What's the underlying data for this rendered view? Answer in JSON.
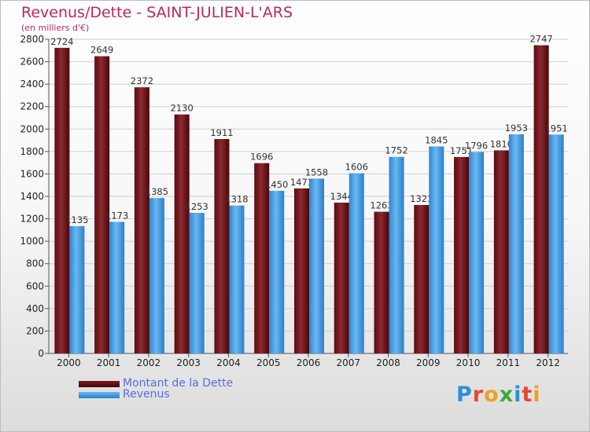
{
  "header": {
    "title": "Revenus/Dette - SAINT-JULIEN-L'ARS",
    "subtitle": "(en milliers d'€)"
  },
  "chart_data": {
    "type": "bar",
    "categories": [
      "2000",
      "2001",
      "2002",
      "2003",
      "2004",
      "2005",
      "2006",
      "2007",
      "2008",
      "2009",
      "2010",
      "2011",
      "2012"
    ],
    "series": [
      {
        "name": "Montant de la Dette",
        "values": [
          2724,
          2649,
          2372,
          2130,
          1911,
          1696,
          1471,
          1344,
          1263,
          1323,
          1751,
          1810,
          2747
        ],
        "color": "#6e0f16"
      },
      {
        "name": "Revenus",
        "values": [
          1135,
          1173,
          1385,
          1253,
          1318,
          1450,
          1558,
          1606,
          1752,
          1845,
          1796,
          1953,
          1951
        ],
        "color": "#3c9be4"
      }
    ],
    "ylim": [
      0,
      2800
    ],
    "yticks": [
      0,
      200,
      400,
      600,
      800,
      1000,
      1200,
      1400,
      1600,
      1800,
      2000,
      2200,
      2400,
      2600,
      2800
    ],
    "grid": true,
    "legend": "bottom-left"
  },
  "logo": {
    "letters": [
      {
        "ch": "P",
        "color": "#2c8fd6"
      },
      {
        "ch": "r",
        "color": "#e8452c"
      },
      {
        "ch": "o",
        "color": "#f0a020"
      },
      {
        "ch": "x",
        "color": "#3aa93a"
      },
      {
        "ch": "i",
        "color": "#2c8fd6"
      },
      {
        "ch": "t",
        "color": "#e8452c"
      },
      {
        "ch": "i",
        "color": "#f0a020"
      }
    ]
  }
}
